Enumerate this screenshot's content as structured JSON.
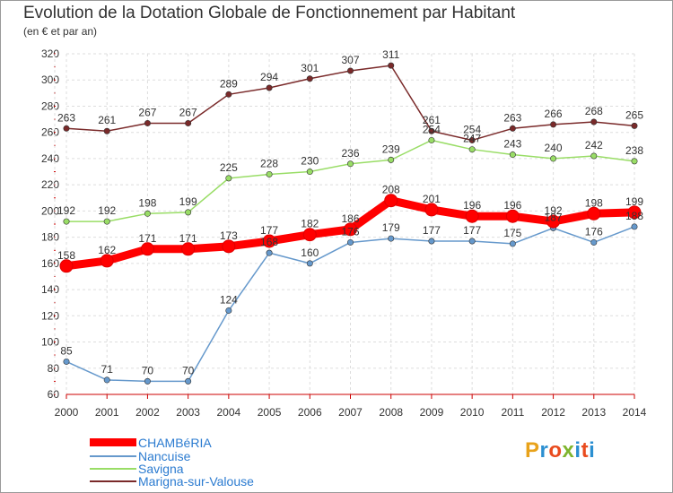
{
  "header": {
    "title": "Evolution de la Dotation Globale de Fonctionnement par Habitant",
    "subtitle": "(en € et par an)"
  },
  "logo": {
    "text": "Proxiti",
    "colors": [
      "#e8a21a",
      "#2b8fd1",
      "#e94b1e",
      "#7fb52e",
      "#2b8fd1",
      "#e94b1e",
      "#2b8fd1"
    ]
  },
  "chart_data": {
    "type": "line",
    "title": "Evolution de la Dotation Globale de Fonctionnement par Habitant",
    "subtitle": "(en € et par an)",
    "xlabel": "",
    "ylabel": "",
    "x": [
      "2000",
      "2001",
      "2002",
      "2003",
      "2004",
      "2005",
      "2006",
      "2007",
      "2008",
      "2009",
      "2010",
      "2011",
      "2012",
      "2013",
      "2014"
    ],
    "ylim": [
      60,
      320
    ],
    "yticks": [
      60,
      80,
      100,
      120,
      140,
      160,
      180,
      200,
      220,
      240,
      260,
      280,
      300,
      320
    ],
    "grid": true,
    "legend_position": "bottom-left",
    "series": [
      {
        "name": "CHAMBéRIA",
        "color": "#ff0000",
        "highlight": true,
        "values": [
          158,
          162,
          171,
          171,
          173,
          177,
          182,
          186,
          208,
          201,
          196,
          196,
          192,
          198,
          199
        ]
      },
      {
        "name": "Nancuise",
        "color": "#6699cc",
        "highlight": false,
        "values": [
          85,
          71,
          70,
          70,
          124,
          168,
          160,
          176,
          179,
          177,
          177,
          175,
          187,
          176,
          188
        ]
      },
      {
        "name": "Savigna",
        "color": "#99dd66",
        "highlight": false,
        "values": [
          192,
          192,
          198,
          199,
          225,
          228,
          230,
          236,
          239,
          254,
          247,
          243,
          240,
          242,
          238
        ]
      },
      {
        "name": "Marigna-sur-Valouse",
        "color": "#7a2a2a",
        "highlight": false,
        "values": [
          263,
          261,
          267,
          267,
          289,
          294,
          301,
          307,
          311,
          261,
          254,
          263,
          266,
          268,
          265
        ]
      }
    ]
  }
}
